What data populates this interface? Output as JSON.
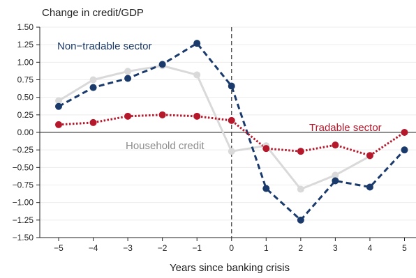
{
  "chart_data": {
    "type": "line",
    "ylabel": "Change in credit/GDP",
    "xlabel": "Years since banking crisis",
    "x": [
      -5,
      -4,
      -3,
      -2,
      -1,
      0,
      1,
      2,
      3,
      4,
      5
    ],
    "xlim": [
      -5.3,
      5.3
    ],
    "ylim": [
      -1.5,
      1.5
    ],
    "yticks": [
      1.5,
      1.25,
      1.0,
      0.75,
      0.5,
      0.25,
      0.0,
      -0.25,
      -0.5,
      -0.75,
      -1.0,
      -1.25,
      -1.5
    ],
    "ytick_labels": [
      "1.50",
      "1.25",
      "1.00",
      "0.75",
      "0.50",
      "0.25",
      "0.00",
      "-0.25",
      "-0.50",
      "-0.75",
      "-1.00",
      "-1.25",
      "-1.50"
    ],
    "xtick_labels": [
      "-5",
      "-4",
      "-3",
      "-2",
      "-1",
      "0",
      "1",
      "2",
      "3",
      "4",
      "5"
    ],
    "grid": "horizontal",
    "reference_lines": {
      "y_zero": true,
      "x_crisis": 0
    },
    "series": [
      {
        "name": "Household credit",
        "style": "solid",
        "color": "#d9d9d9",
        "values": [
          0.45,
          0.75,
          0.87,
          0.95,
          0.82,
          -0.27,
          -0.19,
          -0.81,
          -0.61,
          -0.34,
          null
        ]
      },
      {
        "name": "Non-tradable sector",
        "style": "dashed",
        "color": "#1a3a6b",
        "values": [
          0.37,
          0.64,
          0.77,
          0.97,
          1.27,
          0.66,
          -0.8,
          -1.25,
          -0.69,
          -0.78,
          -0.25
        ]
      },
      {
        "name": "Tradable sector",
        "style": "dotted",
        "color": "#b5182b",
        "values": [
          0.11,
          0.14,
          0.23,
          0.25,
          0.23,
          0.17,
          -0.23,
          -0.27,
          -0.18,
          -0.33,
          0.0
        ]
      }
    ],
    "labels": {
      "household": "Household credit",
      "nontradable": "Non−tradable sector",
      "tradable": "Tradable sector"
    }
  }
}
